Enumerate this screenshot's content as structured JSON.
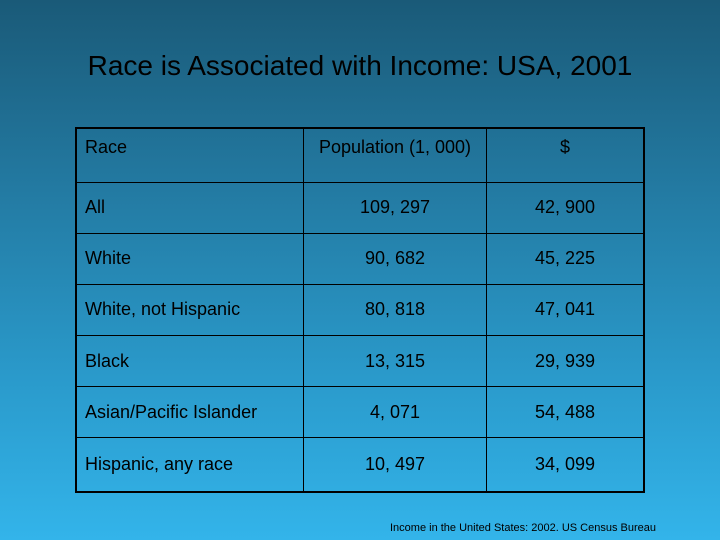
{
  "slide": {
    "title": "Race is Associated with Income: USA, 2001",
    "source": "Income in the United States: 2002. US Census Bureau"
  },
  "table": {
    "headers": {
      "race": "Race",
      "population": "Population (1, 000)",
      "income": "$"
    },
    "rows": [
      {
        "race": "All",
        "population": "109, 297",
        "income": "42, 900"
      },
      {
        "race": "White",
        "population": "90, 682",
        "income": "45, 225"
      },
      {
        "race": "White, not Hispanic",
        "population": "80, 818",
        "income": "47, 041"
      },
      {
        "race": "Black",
        "population": "13, 315",
        "income": "29, 939"
      },
      {
        "race": "Asian/Pacific Islander",
        "population": "4, 071",
        "income": "54, 488"
      },
      {
        "race": "Hispanic, any race",
        "population": "10, 497",
        "income": "34, 099"
      }
    ]
  }
}
